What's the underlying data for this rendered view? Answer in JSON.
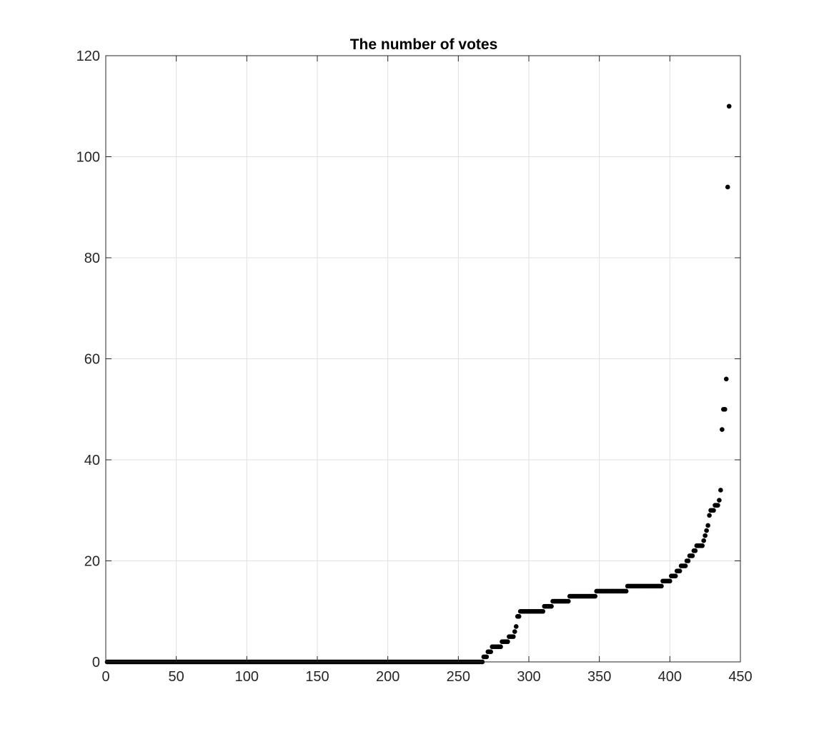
{
  "chart_data": {
    "type": "scatter",
    "title": "The number of votes",
    "xlabel": "",
    "ylabel": "",
    "xlim": [
      0,
      450
    ],
    "ylim": [
      0,
      120
    ],
    "x_ticks": [
      0,
      50,
      100,
      150,
      200,
      250,
      300,
      350,
      400,
      450
    ],
    "y_ticks": [
      0,
      20,
      40,
      60,
      80,
      100,
      120
    ],
    "grid": true,
    "marker_color": "#000000",
    "series": [
      {
        "segments": [
          {
            "x_start": 1,
            "x_end": 267,
            "y": 0
          },
          {
            "x_start": 268,
            "x_end": 270,
            "y": 1
          },
          {
            "x_start": 271,
            "x_end": 273,
            "y": 2
          },
          {
            "x_start": 274,
            "x_end": 280,
            "y": 3
          },
          {
            "x_start": 281,
            "x_end": 285,
            "y": 4
          },
          {
            "x_start": 286,
            "x_end": 289,
            "y": 5
          },
          {
            "x_start": 290,
            "x_end": 290,
            "y": 6
          },
          {
            "x_start": 291,
            "x_end": 291,
            "y": 7
          },
          {
            "x_start": 292,
            "x_end": 293,
            "y": 9
          },
          {
            "x_start": 294,
            "x_end": 310,
            "y": 10
          },
          {
            "x_start": 311,
            "x_end": 316,
            "y": 11
          },
          {
            "x_start": 317,
            "x_end": 328,
            "y": 12
          },
          {
            "x_start": 329,
            "x_end": 347,
            "y": 13
          },
          {
            "x_start": 348,
            "x_end": 369,
            "y": 14
          },
          {
            "x_start": 370,
            "x_end": 394,
            "y": 15
          },
          {
            "x_start": 395,
            "x_end": 400,
            "y": 16
          },
          {
            "x_start": 401,
            "x_end": 404,
            "y": 17
          },
          {
            "x_start": 405,
            "x_end": 407,
            "y": 18
          },
          {
            "x_start": 408,
            "x_end": 411,
            "y": 19
          },
          {
            "x_start": 412,
            "x_end": 413,
            "y": 20
          },
          {
            "x_start": 414,
            "x_end": 416,
            "y": 21
          },
          {
            "x_start": 417,
            "x_end": 418,
            "y": 22
          },
          {
            "x_start": 419,
            "x_end": 423,
            "y": 23
          },
          {
            "x_start": 424,
            "x_end": 424,
            "y": 24
          },
          {
            "x_start": 425,
            "x_end": 425,
            "y": 25
          },
          {
            "x_start": 426,
            "x_end": 426,
            "y": 26
          },
          {
            "x_start": 427,
            "x_end": 427,
            "y": 27
          },
          {
            "x_start": 428,
            "x_end": 428,
            "y": 29
          },
          {
            "x_start": 429,
            "x_end": 431,
            "y": 30
          },
          {
            "x_start": 432,
            "x_end": 434,
            "y": 31
          },
          {
            "x_start": 435,
            "x_end": 435,
            "y": 32
          },
          {
            "x_start": 436,
            "x_end": 436,
            "y": 34
          },
          {
            "x_start": 437,
            "x_end": 437,
            "y": 46
          },
          {
            "x_start": 438,
            "x_end": 439,
            "y": 50
          },
          {
            "x_start": 440,
            "x_end": 440,
            "y": 56
          },
          {
            "x_start": 441,
            "x_end": 441,
            "y": 94
          },
          {
            "x_start": 442,
            "x_end": 442,
            "y": 110
          }
        ]
      }
    ]
  }
}
